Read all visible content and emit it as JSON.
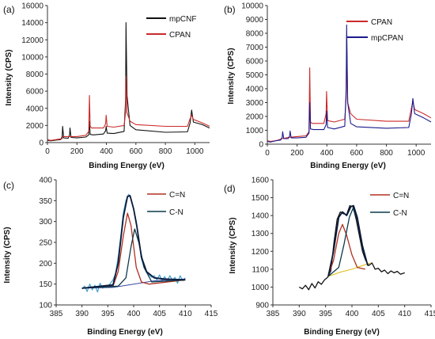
{
  "panels": [
    {
      "panel_label": "(a)",
      "chart_data": {
        "type": "line",
        "title": "",
        "xlabel": "Binding Energy (eV)",
        "ylabel": "Intensity (CPS)",
        "xlim": [
          0,
          1100
        ],
        "ylim": [
          0,
          16000
        ],
        "xticks": [
          0,
          200,
          400,
          600,
          800,
          1000
        ],
        "yticks": [
          0,
          2000,
          4000,
          6000,
          8000,
          10000,
          12000,
          14000,
          16000
        ],
        "grid": false,
        "legend": "top-right",
        "colors": {
          "mpCNF": "#111111",
          "CPAN": "#cc2a2a"
        },
        "series": [
          {
            "name": "mpCNF",
            "x": [
              0,
              20,
              60,
              90,
              100,
              103,
              110,
              140,
              150,
              153,
              160,
              200,
              260,
              280,
              285,
              290,
              310,
              380,
              395,
              398,
              405,
              450,
              520,
              530,
              533,
              540,
              560,
              600,
              800,
              950,
              968,
              978,
              990,
              1050,
              1100
            ],
            "y": [
              280,
              200,
              300,
              350,
              700,
              1900,
              550,
              500,
              900,
              1700,
              600,
              550,
              650,
              900,
              2500,
              950,
              900,
              1000,
              1400,
              1900,
              1100,
              1050,
              1300,
              5000,
              14000,
              5500,
              2000,
              1500,
              1200,
              1250,
              2300,
              3800,
              2400,
              2100,
              1700
            ]
          },
          {
            "name": "CPAN",
            "x": [
              0,
              20,
              60,
              100,
              105,
              150,
              200,
              260,
              280,
              285,
              290,
              300,
              380,
              395,
              398,
              405,
              450,
              520,
              530,
              533,
              540,
              560,
              600,
              800,
              950,
              968,
              978,
              990,
              1050,
              1100
            ],
            "y": [
              350,
              250,
              350,
              450,
              700,
              700,
              700,
              850,
              1300,
              5500,
              1900,
              1700,
              1700,
              2200,
              3200,
              1900,
              1800,
              2000,
              3500,
              7700,
              3500,
              2500,
              2100,
              1900,
              1900,
              2800,
              3200,
              2700,
              2300,
              1900
            ]
          }
        ]
      }
    },
    {
      "panel_label": "(b)",
      "chart_data": {
        "type": "line",
        "title": "",
        "xlabel": "Binding Energy (eV)",
        "ylabel": "Intensity (CPS)",
        "xlim": [
          0,
          1100
        ],
        "ylim": [
          0,
          10000
        ],
        "xticks": [
          0,
          200,
          400,
          600,
          800,
          1000
        ],
        "yticks": [
          0,
          1000,
          2000,
          3000,
          4000,
          5000,
          6000,
          7000,
          8000,
          9000,
          10000
        ],
        "grid": false,
        "legend": "top-right",
        "colors": {
          "CPAN": "#cc2a2a",
          "mpCPAN": "#1a1a8c"
        },
        "series": [
          {
            "name": "CPAN",
            "x": [
              0,
              20,
              60,
              100,
              150,
              200,
              260,
              280,
              285,
              290,
              300,
              380,
              395,
              398,
              405,
              450,
              520,
              530,
              533,
              540,
              560,
              600,
              800,
              950,
              968,
              978,
              990,
              1050,
              1100
            ],
            "y": [
              250,
              200,
              250,
              400,
              500,
              550,
              600,
              900,
              5500,
              1600,
              1500,
              1500,
              2200,
              3800,
              1700,
              1600,
              1800,
              3300,
              7700,
              3000,
              2200,
              1800,
              1650,
              1650,
              2600,
              3100,
              2500,
              2200,
              1900
            ]
          },
          {
            "name": "mpCPAN",
            "x": [
              0,
              20,
              60,
              90,
              100,
              103,
              110,
              140,
              150,
              153,
              160,
              200,
              260,
              280,
              285,
              290,
              310,
              380,
              395,
              398,
              405,
              450,
              520,
              530,
              533,
              540,
              560,
              600,
              800,
              950,
              968,
              978,
              990,
              1050,
              1100
            ],
            "y": [
              200,
              150,
              250,
              300,
              500,
              900,
              400,
              400,
              600,
              950,
              450,
              450,
              500,
              800,
              3000,
              1100,
              1050,
              1050,
              1400,
              2400,
              1200,
              1100,
              1300,
              4000,
              8600,
              3000,
              1500,
              1250,
              1150,
              1200,
              2200,
              3300,
              2200,
              1900,
              1600
            ]
          }
        ]
      }
    },
    {
      "panel_label": "(c)",
      "chart_data": {
        "type": "line",
        "title": "",
        "xlabel": "Binding Energy (eV)",
        "ylabel": "Intensity (CPS)",
        "xlim": [
          385,
          415
        ],
        "ylim": [
          100,
          400
        ],
        "xticks": [
          385,
          390,
          395,
          400,
          405,
          410,
          415
        ],
        "yticks": [
          100,
          150,
          200,
          250,
          300,
          350,
          400
        ],
        "grid": false,
        "legend": "top-right",
        "colors": {
          "C=N": "#b03020",
          "C-N": "#0a3a4a",
          "envelope": "#0a1a3a",
          "raw": "#40a0d0",
          "background": "#3a4aa0"
        },
        "series": [
          {
            "name": "C=N",
            "x": [
              390,
              396,
              397,
              398,
              398.8,
              399.5,
              400.5,
              401.5,
              403,
              410
            ],
            "y": [
              140,
              145,
              180,
              265,
              320,
              290,
              190,
              155,
              150,
              160
            ]
          },
          {
            "name": "C-N",
            "x": [
              390,
              397,
              398.5,
              399.5,
              400.2,
              401,
              402,
              403.5,
              410
            ],
            "y": [
              140,
              145,
              165,
              240,
              282,
              250,
              190,
              155,
              160
            ]
          },
          {
            "name": "",
            "x": [
              390,
              396,
              397,
              398,
              398.8,
              399.3,
              400,
              400.6,
              401.5,
              402.5,
              404,
              406,
              410
            ],
            "y": [
              140,
              148,
              200,
              310,
              360,
              362,
              330,
              290,
              215,
              180,
              165,
              162,
              160
            ]
          },
          {
            "name": "",
            "x": [
              390,
              390.5,
              391,
              391.5,
              392,
              392.5,
              393,
              393.5,
              394,
              394.5,
              395,
              395.5,
              396,
              396.5,
              397,
              397.5,
              398,
              398.5,
              399,
              399.5,
              400,
              400.5,
              401,
              401.5,
              402,
              402.5,
              403,
              403.5,
              404,
              404.5,
              405,
              405.5,
              406,
              406.5,
              407,
              407.5,
              408,
              408.5,
              409,
              409.5,
              410
            ],
            "y": [
              138,
              145,
              132,
              150,
              136,
              147,
              131,
              152,
              140,
              146,
              143,
              152,
              160,
              175,
              215,
              265,
              320,
              350,
              365,
              355,
              330,
              300,
              255,
              210,
              190,
              178,
              172,
              166,
              170,
              160,
              172,
              158,
              168,
              157,
              170,
              160,
              166,
              152,
              170,
              158,
              165
            ]
          },
          {
            "name": "",
            "x": [
              390,
              396,
              400,
              404,
              410
            ],
            "y": [
              140,
              142,
              150,
              158,
              162
            ]
          }
        ]
      }
    },
    {
      "panel_label": "(d)",
      "chart_data": {
        "type": "line",
        "title": "",
        "xlabel": "Binding Energy (eV)",
        "ylabel": "Intensity (CPS)",
        "xlim": [
          385,
          415
        ],
        "ylim": [
          900,
          1600
        ],
        "xticks": [
          385,
          390,
          395,
          400,
          405,
          410,
          415
        ],
        "yticks": [
          900,
          1000,
          1100,
          1200,
          1300,
          1400,
          1500,
          1600
        ],
        "grid": false,
        "legend": "top-right",
        "colors": {
          "C=N": "#b03020",
          "C-N": "#0a3a4a",
          "envelope": "#0a1a3a",
          "raw": "#111111",
          "background": "#e0c020"
        },
        "series": [
          {
            "name": "C=N",
            "x": [
              395.5,
              396.5,
              397.5,
              398.2,
              399,
              400,
              401,
              402.5
            ],
            "y": [
              1060,
              1150,
              1300,
              1350,
              1290,
              1180,
              1110,
              1100
            ]
          },
          {
            "name": "C-N",
            "x": [
              395.5,
              397.5,
              398.5,
              399.5,
              400.2,
              401,
              402,
              403
            ],
            "y": [
              1060,
              1110,
              1240,
              1390,
              1440,
              1380,
              1220,
              1120
            ]
          },
          {
            "name": "",
            "x": [
              395.5,
              396.5,
              397.5,
              398.2,
              399,
              399.8,
              400.3,
              401,
              402,
              403
            ],
            "y": [
              1060,
              1200,
              1390,
              1420,
              1400,
              1450,
              1455,
              1390,
              1230,
              1120
            ]
          },
          {
            "name": "",
            "x": [
              390,
              390.6,
              391.2,
              391.8,
              392.4,
              393,
              393.6,
              394.2,
              394.8,
              395.4,
              396,
              396.6,
              397.2,
              397.8,
              398.4,
              399,
              399.6,
              400.2,
              400.8,
              401.4,
              402,
              402.6,
              403.2,
              403.8,
              404.4,
              405,
              405.6,
              406.2,
              406.8,
              407.4,
              408,
              408.6,
              409.2,
              410
            ],
            "y": [
              1000,
              990,
              1010,
              985,
              1020,
              995,
              1030,
              1015,
              1040,
              1055,
              1090,
              1250,
              1380,
              1420,
              1410,
              1405,
              1455,
              1450,
              1380,
              1290,
              1200,
              1150,
              1120,
              1135,
              1100,
              1105,
              1085,
              1095,
              1075,
              1090,
              1080,
              1088,
              1072,
              1080
            ]
          },
          {
            "name": "",
            "x": [
              395.5,
              398,
              400,
              402,
              403.5
            ],
            "y": [
              1060,
              1085,
              1100,
              1120,
              1135
            ]
          }
        ]
      }
    }
  ]
}
